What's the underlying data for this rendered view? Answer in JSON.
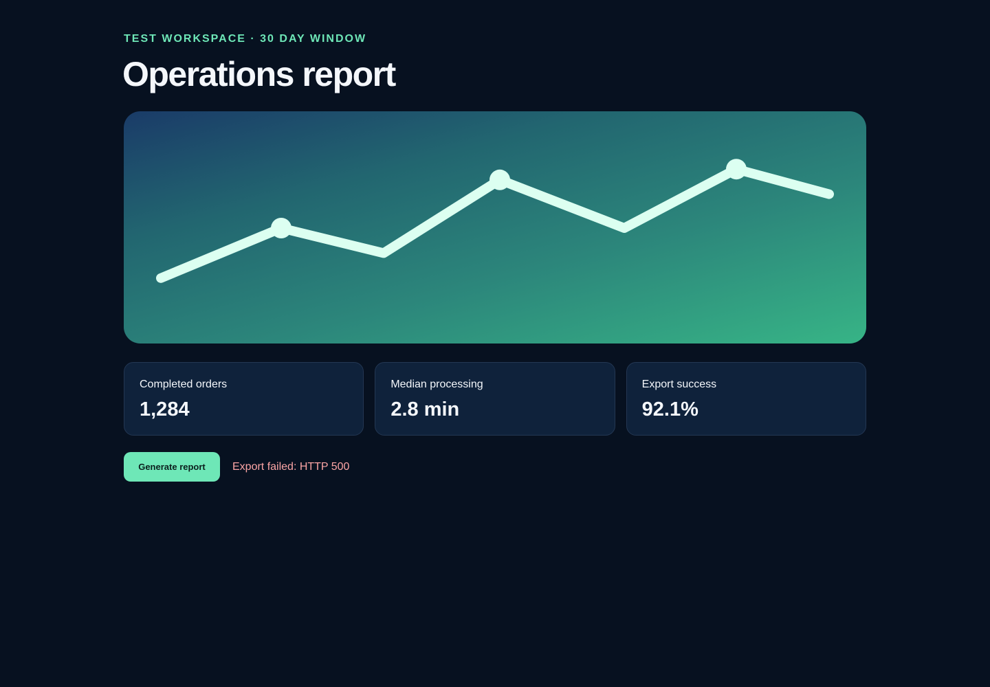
{
  "header": {
    "eyebrow": "Test workspace · 30 day window",
    "title": "Operations report"
  },
  "chart_data": {
    "type": "line",
    "x": [
      1,
      2,
      3,
      4,
      5,
      6,
      7
    ],
    "values": [
      22,
      50,
      36,
      77,
      50,
      83,
      69
    ],
    "highlighted_points": [
      1,
      3,
      5
    ],
    "ylim": [
      0,
      100
    ],
    "grid": false,
    "legend": "none",
    "colors": {
      "line": "#dcfff1",
      "background_start": "#1a3b68",
      "background_end": "#37b486"
    }
  },
  "stats": [
    {
      "label": "Completed orders",
      "value": "1,284"
    },
    {
      "label": "Median processing",
      "value": "2.8 min"
    },
    {
      "label": "Export success",
      "value": "92.1%"
    }
  ],
  "actions": {
    "generate_label": "Generate report",
    "error_text": "Export failed: HTTP 500"
  },
  "colors": {
    "accent": "#6ee7b7",
    "error": "#fca5a5",
    "background": "#071120"
  }
}
